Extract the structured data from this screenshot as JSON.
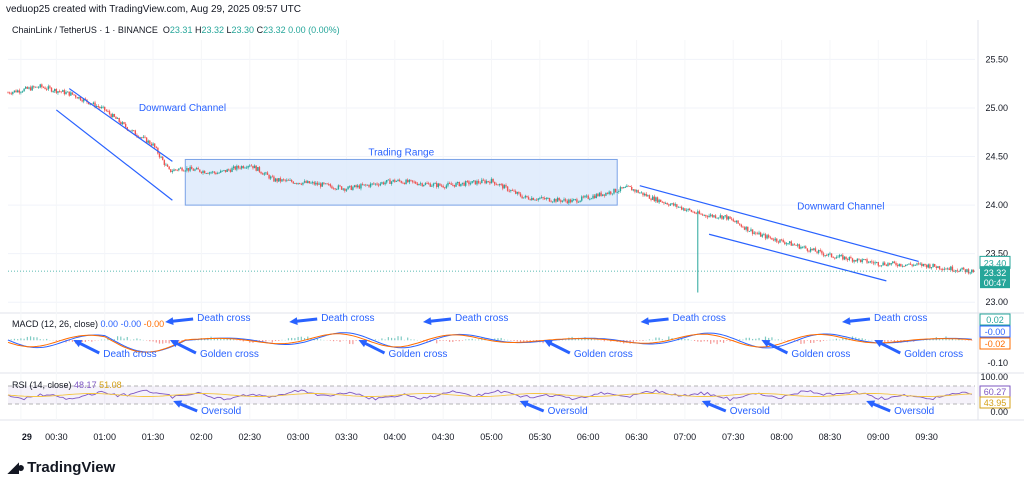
{
  "header": {
    "watermark": "veduop25 created with TradingView.com, Aug 29, 2025 09:57 UTC"
  },
  "legend": {
    "symbol": "ChainLink / TetherUS · 1 · BINANCE",
    "o_label": "O",
    "o": "23.31",
    "h_label": "H",
    "h": "23.32",
    "l_label": "L",
    "l": "23.30",
    "c_label": "C",
    "c": "23.32",
    "change": "0.00 (0.00%)"
  },
  "macd_legend": {
    "label": "MACD (12, 26, close)",
    "v1": "0.00",
    "v2": "-0.00",
    "v3": "-0.00"
  },
  "rsi_legend": {
    "label": "RSI (14, close)",
    "v1": "48.17",
    "v2": "51.08"
  },
  "brand": {
    "name": "TradingView"
  },
  "colors": {
    "up": "#26a69a",
    "down": "#ef5350",
    "line": "#2962ff",
    "annotation": "#2962ff",
    "range_fill": "#dbe8fb",
    "signal": "#ff6d00",
    "rsi": "#7e57c2",
    "rsi_ma": "#f4c542"
  },
  "chart_data": {
    "type": "candlestick",
    "timeframe": "1",
    "x_ticks": [
      "29",
      "00:30",
      "01:00",
      "01:30",
      "02:00",
      "02:30",
      "03:00",
      "03:30",
      "04:00",
      "04:30",
      "05:00",
      "05:30",
      "06:00",
      "06:30",
      "07:00",
      "07:30",
      "08:00",
      "08:30",
      "09:00",
      "09:30"
    ],
    "y_ticks": [
      "25.50",
      "25.00",
      "24.50",
      "24.00",
      "23.50",
      "23.00"
    ],
    "ylim": [
      22.92,
      25.7
    ],
    "price_path": [
      {
        "t": 0,
        "p": 25.16
      },
      {
        "t": 20,
        "p": 25.22
      },
      {
        "t": 40,
        "p": 25.14
      },
      {
        "t": 60,
        "p": 24.98
      },
      {
        "t": 75,
        "p": 24.78
      },
      {
        "t": 90,
        "p": 24.62
      },
      {
        "t": 100,
        "p": 24.35
      },
      {
        "t": 108,
        "p": 24.38
      },
      {
        "t": 130,
        "p": 24.33
      },
      {
        "t": 150,
        "p": 24.42
      },
      {
        "t": 165,
        "p": 24.26
      },
      {
        "t": 190,
        "p": 24.22
      },
      {
        "t": 210,
        "p": 24.17
      },
      {
        "t": 240,
        "p": 24.25
      },
      {
        "t": 270,
        "p": 24.2
      },
      {
        "t": 300,
        "p": 24.25
      },
      {
        "t": 320,
        "p": 24.08
      },
      {
        "t": 350,
        "p": 24.04
      },
      {
        "t": 375,
        "p": 24.14
      },
      {
        "t": 385,
        "p": 24.18
      },
      {
        "t": 400,
        "p": 24.07
      },
      {
        "t": 420,
        "p": 23.96
      },
      {
        "t": 430,
        "p": 23.9
      },
      {
        "t": 445,
        "p": 23.88
      },
      {
        "t": 465,
        "p": 23.7
      },
      {
        "t": 490,
        "p": 23.58
      },
      {
        "t": 510,
        "p": 23.48
      },
      {
        "t": 540,
        "p": 23.4
      },
      {
        "t": 570,
        "p": 23.38
      },
      {
        "t": 597,
        "p": 23.32
      }
    ],
    "wicks": [
      {
        "t": 428,
        "p": 23.1
      }
    ],
    "last_price": {
      "price": "23.32",
      "countdown": "00:47",
      "value": 23.32
    },
    "tag_price": {
      "price": "23.40",
      "value": 23.4
    },
    "macd": {
      "y_ticks": [
        "0.02",
        "0.00",
        "-0.10"
      ],
      "tags": [
        "0.02",
        "-0.00",
        "-0.02"
      ]
    },
    "rsi": {
      "y_ticks": [
        "100.00",
        "0.00"
      ],
      "tags": [
        "60.27",
        "43.95"
      ]
    },
    "annotations": {
      "channels": [
        {
          "label": "Downward Channel",
          "upper": [
            [
              38,
              25.2
            ],
            [
              102,
              24.45
            ]
          ],
          "lower": [
            [
              30,
              24.98
            ],
            [
              102,
              24.05
            ]
          ]
        },
        {
          "label": "Downward Channel",
          "upper": [
            [
              392,
              24.2
            ],
            [
              565,
              23.42
            ]
          ],
          "lower": [
            [
              435,
              23.7
            ],
            [
              545,
              23.22
            ]
          ]
        }
      ],
      "range": {
        "label": "Trading Range",
        "t0": 110,
        "t1": 378,
        "top": 24.47,
        "bottom": 24.0
      },
      "macd_labels": [
        {
          "text": "Death cross",
          "t": 38,
          "below": true
        },
        {
          "text": "Death cross",
          "t": 95,
          "below": false
        },
        {
          "text": "Golden cross",
          "t": 98,
          "below": true
        },
        {
          "text": "Death cross",
          "t": 172,
          "below": false
        },
        {
          "text": "Golden cross",
          "t": 215,
          "below": true
        },
        {
          "text": "Death cross",
          "t": 255,
          "below": false
        },
        {
          "text": "Golden cross",
          "t": 330,
          "below": true
        },
        {
          "text": "Death cross",
          "t": 390,
          "below": false
        },
        {
          "text": "Golden cross",
          "t": 465,
          "below": true
        },
        {
          "text": "Death cross",
          "t": 515,
          "below": false
        },
        {
          "text": "Golden cross",
          "t": 535,
          "below": true
        }
      ],
      "rsi_labels": [
        {
          "text": "Oversold",
          "t": 100
        },
        {
          "text": "Oversold",
          "t": 315
        },
        {
          "text": "Oversold",
          "t": 428
        },
        {
          "text": "Oversold",
          "t": 530
        }
      ]
    }
  }
}
